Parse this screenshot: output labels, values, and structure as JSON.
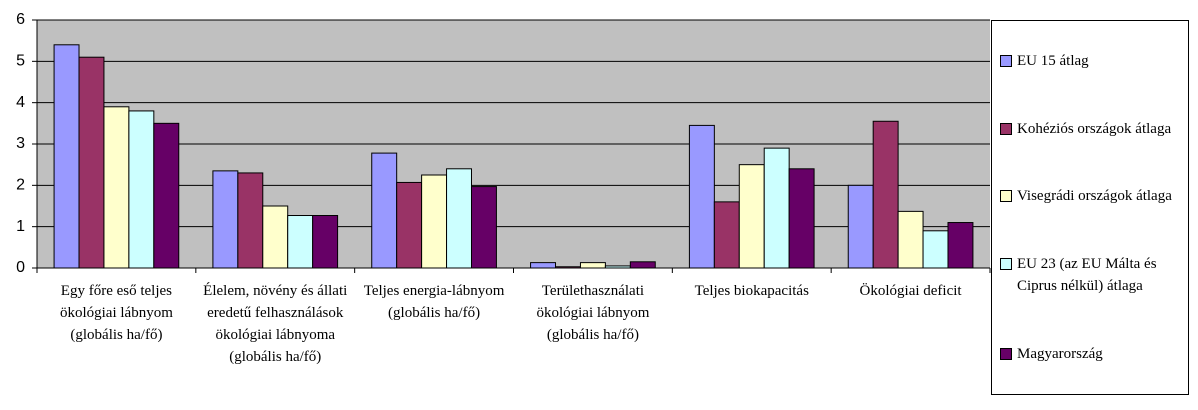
{
  "chart_data": {
    "type": "bar",
    "categories": [
      "Egy főre eső teljes ökológiai lábnyom (globális ha/fő)",
      "Élelem, növény és állati eredetű felhasználások ökológiai lábnyoma (globális ha/fő)",
      "Teljes energia-lábnyom (globális ha/fő)",
      "Területhasználati ökológiai lábnyom (globális ha/fő)",
      "Teljes biokapacitás",
      "Ökológiai deficit"
    ],
    "series": [
      {
        "name": "EU 15 átlag",
        "color": "#9999ff",
        "values": [
          5.4,
          2.35,
          2.78,
          0.13,
          3.45,
          2.0
        ]
      },
      {
        "name": "Kohéziós országok átlaga",
        "color": "#993366",
        "values": [
          5.1,
          2.3,
          2.07,
          0.03,
          1.6,
          3.55
        ]
      },
      {
        "name": "Visegrádi országok átlaga",
        "color": "#ffffcc",
        "values": [
          3.9,
          1.5,
          2.25,
          0.13,
          2.5,
          1.37
        ]
      },
      {
        "name": "EU 23 (az EU Málta és Ciprus nélkül) átlaga",
        "color": "#ccffff",
        "values": [
          3.8,
          1.27,
          2.4,
          0.05,
          2.9,
          0.9
        ]
      },
      {
        "name": "Magyarország",
        "color": "#660066",
        "values": [
          3.5,
          1.27,
          1.97,
          0.15,
          2.4,
          1.1
        ]
      }
    ],
    "ylim": [
      0,
      6
    ],
    "yticks": [
      0,
      1,
      2,
      3,
      4,
      5,
      6
    ],
    "grid": true,
    "legend": "right"
  }
}
